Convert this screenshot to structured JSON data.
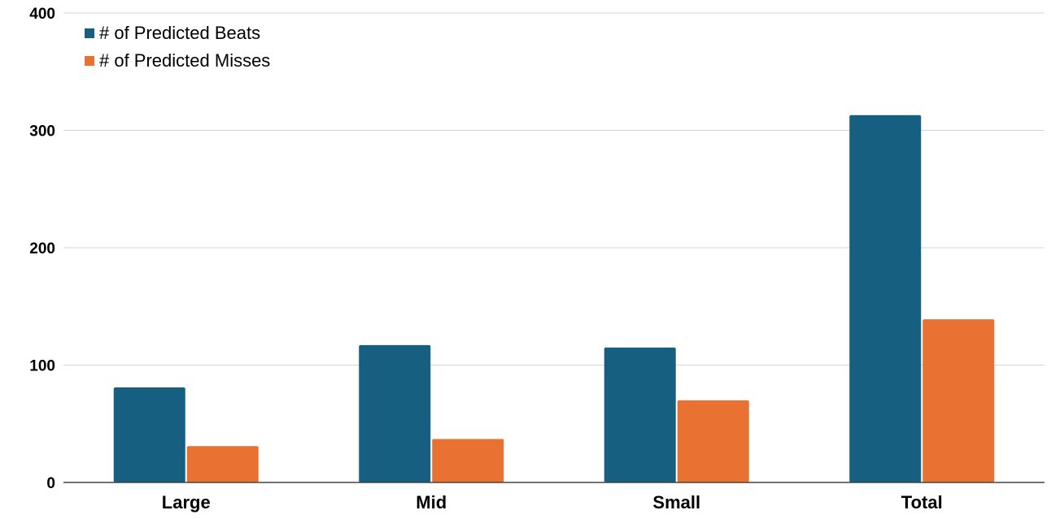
{
  "chart_data": {
    "type": "bar",
    "categories": [
      "Large",
      "Mid",
      "Small",
      "Total"
    ],
    "series": [
      {
        "name": "# of Predicted Beats",
        "values": [
          81,
          117,
          115,
          313
        ],
        "color": "#175f80"
      },
      {
        "name": "# of Predicted Misses",
        "values": [
          31,
          37,
          70,
          139
        ],
        "color": "#e97132"
      }
    ],
    "ylim": [
      0,
      400
    ],
    "yticks": [
      0,
      100,
      200,
      300,
      400
    ],
    "grid": true,
    "legend": "top-left"
  }
}
